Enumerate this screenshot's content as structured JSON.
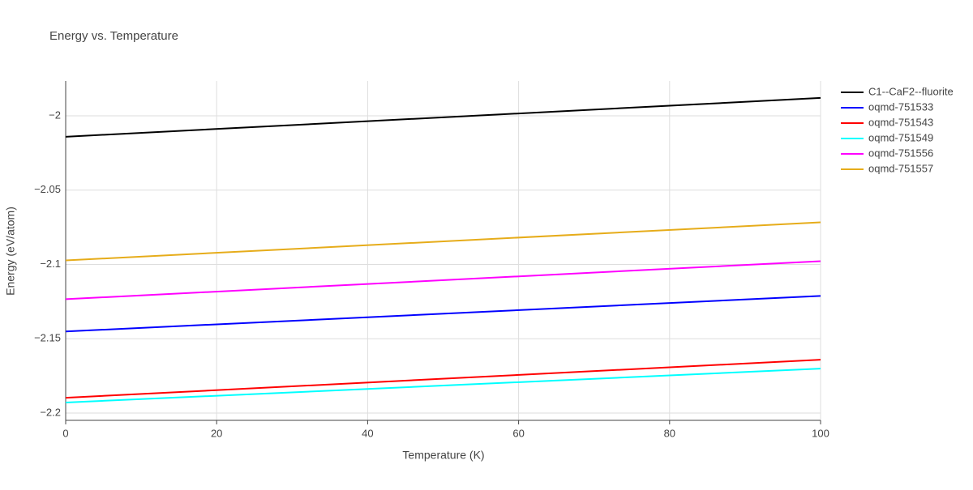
{
  "chart_data": {
    "type": "line",
    "title": "Energy vs. Temperature",
    "x_label": "Temperature (K)",
    "y_label": "Energy (eV/atom)",
    "x": [
      0,
      100
    ],
    "series": [
      {
        "name": "C1--CaF2--fluorite",
        "color": "#000000",
        "values": [
          -2.0141,
          -1.988
        ]
      },
      {
        "name": "oqmd-751533",
        "color": "#0000ff",
        "values": [
          -2.1451,
          -2.1212
        ]
      },
      {
        "name": "oqmd-751543",
        "color": "#ff0000",
        "values": [
          -2.1897,
          -2.1641
        ]
      },
      {
        "name": "oqmd-751549",
        "color": "#00ffff",
        "values": [
          -2.1929,
          -2.1701
        ]
      },
      {
        "name": "oqmd-751556",
        "color": "#ff00ff",
        "values": [
          -2.1234,
          -2.0978
        ]
      },
      {
        "name": "oqmd-751557",
        "color": "#e6ac1a",
        "values": [
          -2.0973,
          -2.0717
        ]
      }
    ],
    "xlim": [
      0,
      100
    ],
    "xticks": [
      0,
      20,
      40,
      60,
      80,
      100
    ],
    "ylim": [
      -2.2049,
      -1.9766
    ],
    "yticks": [
      {
        "value": -2.2,
        "label": "−2.2"
      },
      {
        "value": -2.15,
        "label": "−2.15"
      },
      {
        "value": -2.1,
        "label": "−2.1"
      },
      {
        "value": -2.05,
        "label": "−2.05"
      },
      {
        "value": -2,
        "label": "−2"
      }
    ],
    "grid": true,
    "legend": "right"
  }
}
